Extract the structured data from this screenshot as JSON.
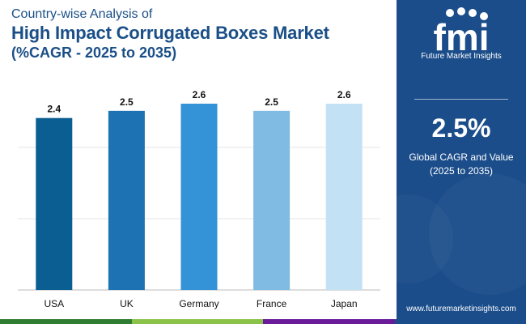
{
  "header": {
    "line1": "Country-wise Analysis of",
    "line2": "High Impact Corrugated Boxes Market",
    "line3": "(%CAGR - 2025 to 2035)"
  },
  "chart_data": {
    "type": "bar",
    "categories": [
      "USA",
      "UK",
      "Germany",
      "France",
      "Japan"
    ],
    "values": [
      2.4,
      2.5,
      2.6,
      2.5,
      2.6
    ],
    "data_labels": [
      "2.4",
      "2.5",
      "2.6",
      "2.5",
      "2.6"
    ],
    "colors": [
      "#0b5e91",
      "#1d72b3",
      "#3393d6",
      "#7fbbe3",
      "#c3e1f4"
    ],
    "title": "",
    "xlabel": "",
    "ylabel": "",
    "ylim": [
      0,
      2.6
    ],
    "grid": true,
    "legend": "none"
  },
  "sidebar": {
    "logo_letters": "fmi",
    "logo_text": "Future Market Insights",
    "value": "2.5%",
    "caption_line1": "Global CAGR and Value",
    "caption_line2": "(2025 to 2035)",
    "website": "www.futuremarketinsights.com",
    "background": "#1b4d8a"
  },
  "footer_colors": [
    "#2e7d32",
    "#8bc34a",
    "#6a1b9a",
    "#1b4d8a"
  ]
}
